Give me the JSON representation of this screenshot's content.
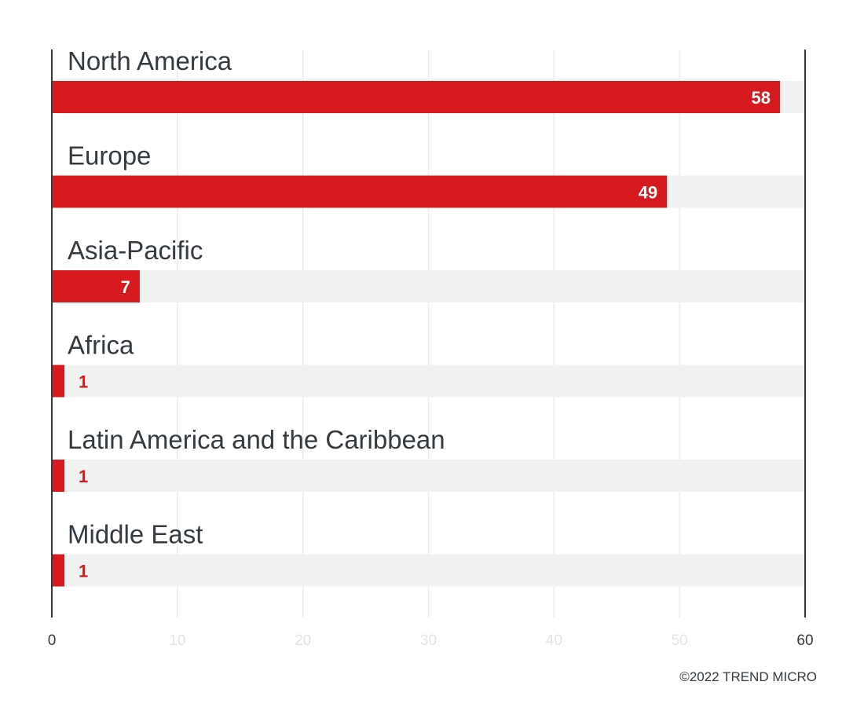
{
  "chart_data": {
    "type": "bar",
    "orientation": "horizontal",
    "categories": [
      "North America",
      "Europe",
      "Asia-Pacific",
      "Africa",
      "Latin America and the Caribbean",
      "Middle East"
    ],
    "values": [
      58,
      49,
      7,
      1,
      1,
      1
    ],
    "xlim": [
      0,
      60
    ],
    "x_ticks": [
      0,
      10,
      20,
      30,
      40,
      50,
      60
    ],
    "grid": true,
    "bar_color": "#d71920",
    "track_color": "#f0f2f2",
    "value_label_inside_color": "#ffffff",
    "value_label_outside_color": "#d71920",
    "text_color": "#333a40"
  },
  "footer": {
    "copyright": "©2022 TREND MICRO"
  }
}
